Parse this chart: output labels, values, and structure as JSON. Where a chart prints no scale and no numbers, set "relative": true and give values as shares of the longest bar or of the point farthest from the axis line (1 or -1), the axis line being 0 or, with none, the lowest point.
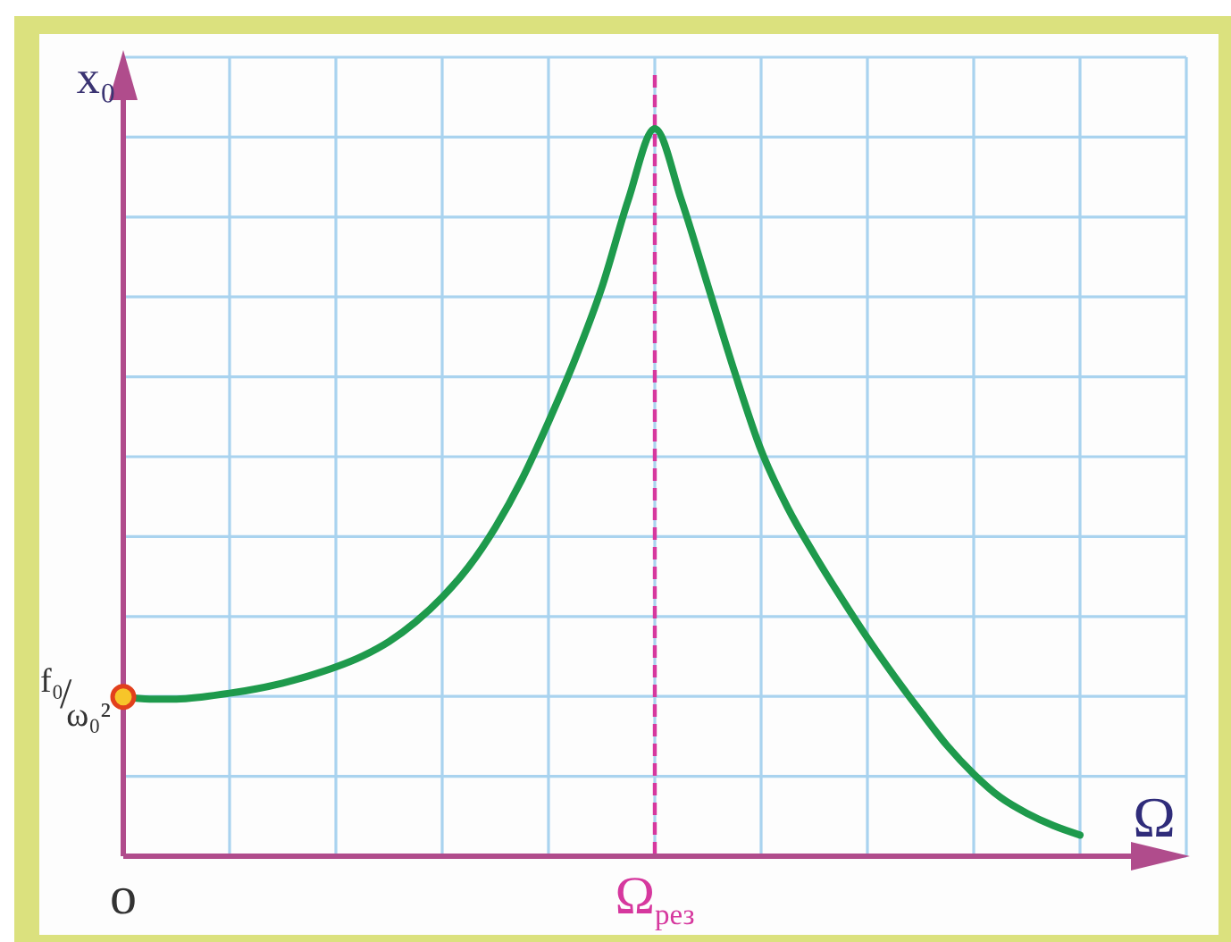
{
  "chart_data": {
    "type": "line",
    "relative": true,
    "xlabel": "Ω",
    "ylabel": "x₀",
    "grid": true,
    "categories": [
      "o",
      null,
      null,
      null,
      null,
      null,
      null,
      null,
      null,
      null,
      null,
      null,
      null,
      null,
      null,
      null,
      null,
      null,
      null,
      null,
      "Ω$_{рез}$",
      null,
      null,
      null,
      null,
      null,
      null,
      null,
      null,
      null,
      null,
      null,
      null,
      null,
      null,
      null,
      null,
      null,
      null,
      null,
      null
    ],
    "series": [
      {
        "color": "#1e9a4c",
        "values": [
          0.219,
          0.216,
          0.216,
          0.219,
          0.224,
          0.23,
          0.238,
          0.248,
          0.26,
          0.275,
          0.295,
          0.322,
          0.356,
          0.398,
          0.452,
          0.518,
          0.597,
          0.683,
          0.781,
          0.902,
          1,
          0.902,
          0.784,
          0.666,
          0.558,
          0.479,
          0.415,
          0.356,
          0.3,
          0.248,
          0.199,
          0.152,
          0.113,
          0.081,
          0.059,
          0.042,
          0.029,
          null,
          null,
          null,
          null
        ]
      },
      {
        "type": "scatter",
        "color": "#f7c52a",
        "values": [
          0.219,
          null,
          null,
          null,
          null,
          null,
          null,
          null,
          null,
          null,
          null,
          null,
          null,
          null,
          null,
          null,
          null,
          null,
          null,
          null,
          null,
          null,
          null,
          null,
          null,
          null,
          null,
          null,
          null,
          null,
          null,
          null,
          null,
          null,
          null,
          null,
          null,
          null,
          null,
          null,
          null
        ]
      }
    ],
    "ref_lines": [
      {
        "axis": "x",
        "value": "Ω$_{рез}$",
        "color": "#d6389e",
        "line_style": "dashed"
      }
    ],
    "annotations": [
      "f₀/ω₀²"
    ]
  }
}
